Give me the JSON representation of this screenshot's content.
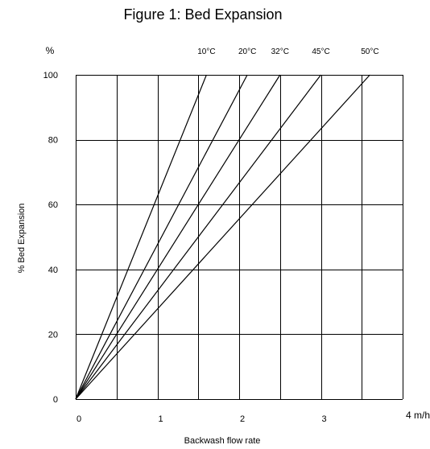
{
  "chart_data": {
    "type": "line",
    "title": "Figure 1: Bed Expansion",
    "xlabel": "Backwash flow rate",
    "ylabel": "% Bed Expansion",
    "x_unit": "m/h",
    "y_unit": "%",
    "xlim": [
      0,
      4
    ],
    "ylim": [
      0,
      100
    ],
    "x_ticks": [
      0,
      1,
      2,
      3,
      4
    ],
    "x_tick_labels": [
      "0",
      "1",
      "2",
      "3",
      "4 m/h"
    ],
    "y_ticks": [
      0,
      20,
      40,
      60,
      80,
      100
    ],
    "y_tick_labels": [
      "0",
      "20",
      "40",
      "60",
      "80",
      "100"
    ],
    "x_grid_step": 0.5,
    "grid": true,
    "legend": "series labels above plot at line ends",
    "series": [
      {
        "name": "10°C",
        "x": [
          0,
          1.6
        ],
        "y": [
          0,
          100
        ]
      },
      {
        "name": "20°C",
        "x": [
          0,
          2.1
        ],
        "y": [
          0,
          100
        ]
      },
      {
        "name": "32°C",
        "x": [
          0,
          2.5
        ],
        "y": [
          0,
          100
        ]
      },
      {
        "name": "45°C",
        "x": [
          0,
          3.0
        ],
        "y": [
          0,
          100
        ]
      },
      {
        "name": "50°C",
        "x": [
          0,
          3.6
        ],
        "y": [
          0,
          100
        ]
      }
    ]
  }
}
